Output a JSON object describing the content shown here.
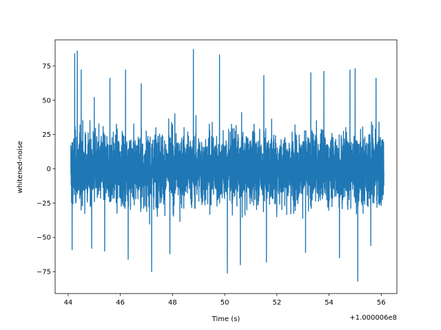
{
  "chart_data": {
    "type": "line",
    "title": "",
    "xlabel": "Time (s)",
    "ylabel": "whitened-noise",
    "x_offset_label": "+1.000006e8",
    "xlim": [
      43.5,
      56.6
    ],
    "ylim": [
      -91,
      94
    ],
    "x_ticks": [
      44,
      46,
      48,
      50,
      52,
      54,
      56
    ],
    "x_tick_labels": [
      "44",
      "46",
      "48",
      "50",
      "52",
      "54",
      "56"
    ],
    "y_ticks": [
      -75,
      -50,
      -25,
      0,
      25,
      50,
      75
    ],
    "y_tick_labels": [
      "−75",
      "−50",
      "−25",
      "0",
      "25",
      "50",
      "75"
    ],
    "grid": false,
    "legend": "none",
    "series": [
      {
        "color": "#1f77b4",
        "x_range": [
          44.1,
          56.1
        ],
        "envelope_max": 40,
        "envelope_min": -40,
        "peak_max": 87,
        "peak_min": -82,
        "spikes": [
          {
            "x": 44.15,
            "y": 59
          },
          {
            "x": 44.25,
            "y": 84
          },
          {
            "x": 44.35,
            "y": 86
          },
          {
            "x": 44.5,
            "y": 72
          },
          {
            "x": 45.0,
            "y": 52
          },
          {
            "x": 45.6,
            "y": 66
          },
          {
            "x": 46.2,
            "y": 72
          },
          {
            "x": 46.8,
            "y": 62
          },
          {
            "x": 48.8,
            "y": 87
          },
          {
            "x": 49.8,
            "y": 83
          },
          {
            "x": 51.5,
            "y": 68
          },
          {
            "x": 53.3,
            "y": 70
          },
          {
            "x": 53.8,
            "y": 71
          },
          {
            "x": 54.8,
            "y": 72
          },
          {
            "x": 55.0,
            "y": 73
          },
          {
            "x": 55.8,
            "y": 66
          },
          {
            "x": 44.15,
            "y": -59
          },
          {
            "x": 44.9,
            "y": -58
          },
          {
            "x": 45.4,
            "y": -60
          },
          {
            "x": 46.3,
            "y": -66
          },
          {
            "x": 47.2,
            "y": -75
          },
          {
            "x": 47.9,
            "y": -62
          },
          {
            "x": 50.1,
            "y": -76
          },
          {
            "x": 50.6,
            "y": -70
          },
          {
            "x": 51.6,
            "y": -68
          },
          {
            "x": 53.1,
            "y": -61
          },
          {
            "x": 54.4,
            "y": -65
          },
          {
            "x": 55.1,
            "y": -82
          },
          {
            "x": 55.6,
            "y": -56
          }
        ]
      }
    ]
  }
}
